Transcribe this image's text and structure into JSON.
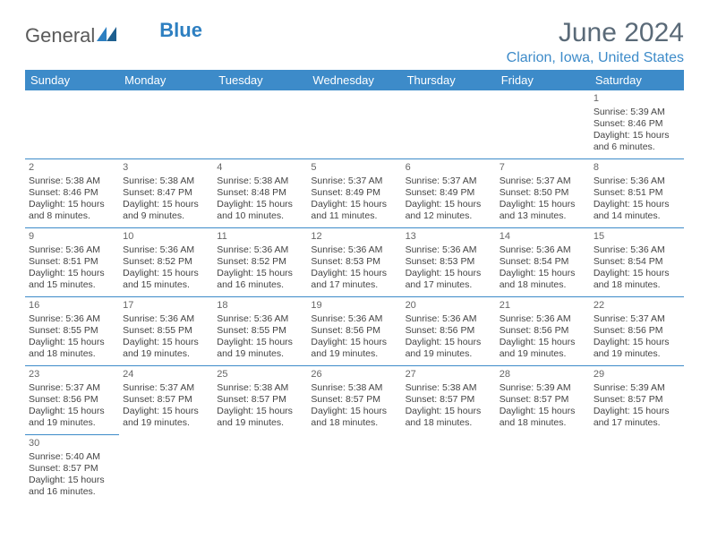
{
  "brand": {
    "part1": "General",
    "part2": "Blue",
    "logo_color": "#2d7fc1"
  },
  "title": "June 2024",
  "location": "Clarion, Iowa, United States",
  "header_bg": "#3d8bc9",
  "weekdays": [
    "Sunday",
    "Monday",
    "Tuesday",
    "Wednesday",
    "Thursday",
    "Friday",
    "Saturday"
  ],
  "weeks": [
    [
      null,
      null,
      null,
      null,
      null,
      null,
      {
        "n": "1",
        "sr": "Sunrise: 5:39 AM",
        "ss": "Sunset: 8:46 PM",
        "dl": "Daylight: 15 hours and 6 minutes."
      }
    ],
    [
      {
        "n": "2",
        "sr": "Sunrise: 5:38 AM",
        "ss": "Sunset: 8:46 PM",
        "dl": "Daylight: 15 hours and 8 minutes."
      },
      {
        "n": "3",
        "sr": "Sunrise: 5:38 AM",
        "ss": "Sunset: 8:47 PM",
        "dl": "Daylight: 15 hours and 9 minutes."
      },
      {
        "n": "4",
        "sr": "Sunrise: 5:38 AM",
        "ss": "Sunset: 8:48 PM",
        "dl": "Daylight: 15 hours and 10 minutes."
      },
      {
        "n": "5",
        "sr": "Sunrise: 5:37 AM",
        "ss": "Sunset: 8:49 PM",
        "dl": "Daylight: 15 hours and 11 minutes."
      },
      {
        "n": "6",
        "sr": "Sunrise: 5:37 AM",
        "ss": "Sunset: 8:49 PM",
        "dl": "Daylight: 15 hours and 12 minutes."
      },
      {
        "n": "7",
        "sr": "Sunrise: 5:37 AM",
        "ss": "Sunset: 8:50 PM",
        "dl": "Daylight: 15 hours and 13 minutes."
      },
      {
        "n": "8",
        "sr": "Sunrise: 5:36 AM",
        "ss": "Sunset: 8:51 PM",
        "dl": "Daylight: 15 hours and 14 minutes."
      }
    ],
    [
      {
        "n": "9",
        "sr": "Sunrise: 5:36 AM",
        "ss": "Sunset: 8:51 PM",
        "dl": "Daylight: 15 hours and 15 minutes."
      },
      {
        "n": "10",
        "sr": "Sunrise: 5:36 AM",
        "ss": "Sunset: 8:52 PM",
        "dl": "Daylight: 15 hours and 15 minutes."
      },
      {
        "n": "11",
        "sr": "Sunrise: 5:36 AM",
        "ss": "Sunset: 8:52 PM",
        "dl": "Daylight: 15 hours and 16 minutes."
      },
      {
        "n": "12",
        "sr": "Sunrise: 5:36 AM",
        "ss": "Sunset: 8:53 PM",
        "dl": "Daylight: 15 hours and 17 minutes."
      },
      {
        "n": "13",
        "sr": "Sunrise: 5:36 AM",
        "ss": "Sunset: 8:53 PM",
        "dl": "Daylight: 15 hours and 17 minutes."
      },
      {
        "n": "14",
        "sr": "Sunrise: 5:36 AM",
        "ss": "Sunset: 8:54 PM",
        "dl": "Daylight: 15 hours and 18 minutes."
      },
      {
        "n": "15",
        "sr": "Sunrise: 5:36 AM",
        "ss": "Sunset: 8:54 PM",
        "dl": "Daylight: 15 hours and 18 minutes."
      }
    ],
    [
      {
        "n": "16",
        "sr": "Sunrise: 5:36 AM",
        "ss": "Sunset: 8:55 PM",
        "dl": "Daylight: 15 hours and 18 minutes."
      },
      {
        "n": "17",
        "sr": "Sunrise: 5:36 AM",
        "ss": "Sunset: 8:55 PM",
        "dl": "Daylight: 15 hours and 19 minutes."
      },
      {
        "n": "18",
        "sr": "Sunrise: 5:36 AM",
        "ss": "Sunset: 8:55 PM",
        "dl": "Daylight: 15 hours and 19 minutes."
      },
      {
        "n": "19",
        "sr": "Sunrise: 5:36 AM",
        "ss": "Sunset: 8:56 PM",
        "dl": "Daylight: 15 hours and 19 minutes."
      },
      {
        "n": "20",
        "sr": "Sunrise: 5:36 AM",
        "ss": "Sunset: 8:56 PM",
        "dl": "Daylight: 15 hours and 19 minutes."
      },
      {
        "n": "21",
        "sr": "Sunrise: 5:36 AM",
        "ss": "Sunset: 8:56 PM",
        "dl": "Daylight: 15 hours and 19 minutes."
      },
      {
        "n": "22",
        "sr": "Sunrise: 5:37 AM",
        "ss": "Sunset: 8:56 PM",
        "dl": "Daylight: 15 hours and 19 minutes."
      }
    ],
    [
      {
        "n": "23",
        "sr": "Sunrise: 5:37 AM",
        "ss": "Sunset: 8:56 PM",
        "dl": "Daylight: 15 hours and 19 minutes."
      },
      {
        "n": "24",
        "sr": "Sunrise: 5:37 AM",
        "ss": "Sunset: 8:57 PM",
        "dl": "Daylight: 15 hours and 19 minutes."
      },
      {
        "n": "25",
        "sr": "Sunrise: 5:38 AM",
        "ss": "Sunset: 8:57 PM",
        "dl": "Daylight: 15 hours and 19 minutes."
      },
      {
        "n": "26",
        "sr": "Sunrise: 5:38 AM",
        "ss": "Sunset: 8:57 PM",
        "dl": "Daylight: 15 hours and 18 minutes."
      },
      {
        "n": "27",
        "sr": "Sunrise: 5:38 AM",
        "ss": "Sunset: 8:57 PM",
        "dl": "Daylight: 15 hours and 18 minutes."
      },
      {
        "n": "28",
        "sr": "Sunrise: 5:39 AM",
        "ss": "Sunset: 8:57 PM",
        "dl": "Daylight: 15 hours and 18 minutes."
      },
      {
        "n": "29",
        "sr": "Sunrise: 5:39 AM",
        "ss": "Sunset: 8:57 PM",
        "dl": "Daylight: 15 hours and 17 minutes."
      }
    ],
    [
      {
        "n": "30",
        "sr": "Sunrise: 5:40 AM",
        "ss": "Sunset: 8:57 PM",
        "dl": "Daylight: 15 hours and 16 minutes."
      },
      null,
      null,
      null,
      null,
      null,
      null
    ]
  ]
}
